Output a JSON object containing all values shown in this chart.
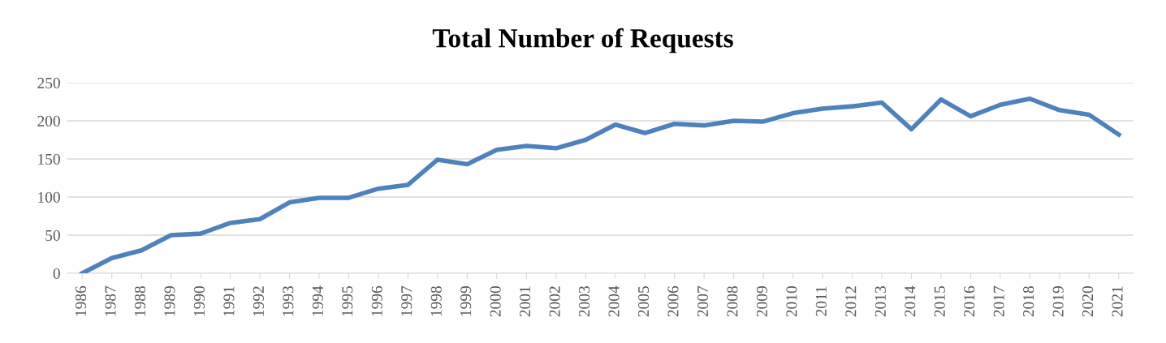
{
  "chart_data": {
    "type": "line",
    "title": "Total Number of Requests",
    "categories": [
      "1986",
      "1987",
      "1988",
      "1989",
      "1990",
      "1991",
      "1992",
      "1993",
      "1994",
      "1995",
      "1996",
      "1997",
      "1998",
      "1999",
      "2000",
      "2001",
      "2002",
      "2003",
      "2004",
      "2005",
      "2006",
      "2007",
      "2008",
      "2009",
      "2010",
      "2011",
      "2012",
      "2013",
      "2014",
      "2015",
      "2016",
      "2017",
      "2018",
      "2019",
      "2020",
      "2021"
    ],
    "series": [
      {
        "color": "#4f81bd",
        "values": [
          0,
          20,
          30,
          50,
          52,
          66,
          71,
          93,
          99,
          99,
          111,
          116,
          149,
          143,
          162,
          167,
          164,
          175,
          195,
          184,
          196,
          194,
          200,
          199,
          210,
          216,
          219,
          224,
          189,
          228,
          206,
          221,
          229,
          214,
          208,
          182
        ]
      }
    ],
    "ylim": [
      0,
      250
    ],
    "yticks": [
      0,
      50,
      100,
      150,
      200,
      250
    ],
    "grid": "y",
    "legend": false,
    "marker": "none",
    "line_style": "solid"
  }
}
